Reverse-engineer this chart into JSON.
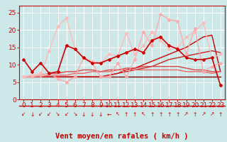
{
  "background_color": "#cce8e8",
  "grid_color": "#ffffff",
  "xlabel": "Vent moyen/en rafales ( km/h )",
  "xlabel_color": "#cc0000",
  "xlabel_fontsize": 7.5,
  "tick_color": "#cc0000",
  "tick_fontsize": 6.5,
  "ylim": [
    0,
    27
  ],
  "xlim": [
    -0.5,
    23.5
  ],
  "yticks": [
    0,
    5,
    10,
    15,
    20,
    25
  ],
  "xticks": [
    0,
    1,
    2,
    3,
    4,
    5,
    6,
    7,
    8,
    9,
    10,
    11,
    12,
    13,
    14,
    15,
    16,
    17,
    18,
    19,
    20,
    21,
    22,
    23
  ],
  "arrows": [
    "↙",
    "↓",
    "↙",
    "↙",
    "↘",
    "↙",
    "↘",
    "↓",
    "↓",
    "↓",
    "←",
    "↖",
    "↑",
    "↑",
    "↖",
    "↑",
    "↑",
    "↑",
    "↑",
    "↗",
    "↑",
    "↗",
    "↗",
    "↑"
  ],
  "series": [
    {
      "x": [
        0,
        1,
        2,
        3,
        4,
        5,
        6,
        7,
        8,
        9,
        10,
        11,
        12,
        13,
        14,
        15,
        16,
        17,
        18,
        19,
        20,
        21,
        22,
        23
      ],
      "y": [
        6.5,
        6.5,
        6.5,
        6.5,
        6.5,
        6.5,
        6.5,
        6.5,
        6.5,
        6.5,
        6.5,
        6.5,
        6.5,
        6.5,
        6.5,
        6.5,
        6.5,
        6.5,
        6.5,
        6.5,
        6.5,
        6.5,
        6.5,
        6.5
      ],
      "color": "#880000",
      "linewidth": 1.0,
      "marker": null,
      "zorder": 2
    },
    {
      "x": [
        0,
        1,
        2,
        3,
        4,
        5,
        6,
        7,
        8,
        9,
        10,
        11,
        12,
        13,
        14,
        15,
        16,
        17,
        18,
        19,
        20,
        21,
        22,
        23
      ],
      "y": [
        6.5,
        6.5,
        6.5,
        6.5,
        6.5,
        6.5,
        6.5,
        6.5,
        6.5,
        6.5,
        7.0,
        7.5,
        8.5,
        9.0,
        10.0,
        11.0,
        12.0,
        13.0,
        14.0,
        15.0,
        16.5,
        18.0,
        18.5,
        8.0
      ],
      "color": "#cc0000",
      "linewidth": 1.0,
      "marker": null,
      "zorder": 2
    },
    {
      "x": [
        0,
        1,
        2,
        3,
        4,
        5,
        6,
        7,
        8,
        9,
        10,
        11,
        12,
        13,
        14,
        15,
        16,
        17,
        18,
        19,
        20,
        21,
        22,
        23
      ],
      "y": [
        6.5,
        6.5,
        6.5,
        6.5,
        6.5,
        6.5,
        6.5,
        6.5,
        6.5,
        6.5,
        7.0,
        7.5,
        8.0,
        8.5,
        9.0,
        9.5,
        10.5,
        11.5,
        12.0,
        12.5,
        13.0,
        13.5,
        14.0,
        13.5
      ],
      "color": "#cc2222",
      "linewidth": 1.0,
      "marker": null,
      "zorder": 2
    },
    {
      "x": [
        0,
        1,
        2,
        3,
        4,
        5,
        6,
        7,
        8,
        9,
        10,
        11,
        12,
        13,
        14,
        15,
        16,
        17,
        18,
        19,
        20,
        21,
        22,
        23
      ],
      "y": [
        6.5,
        6.5,
        7.0,
        7.5,
        7.5,
        8.0,
        8.0,
        8.5,
        8.5,
        8.0,
        8.5,
        8.5,
        9.0,
        9.0,
        9.5,
        9.5,
        9.5,
        9.5,
        9.5,
        9.0,
        8.5,
        8.5,
        8.0,
        8.0
      ],
      "color": "#dd4444",
      "linewidth": 1.0,
      "marker": null,
      "zorder": 2
    },
    {
      "x": [
        0,
        1,
        2,
        3,
        4,
        5,
        6,
        7,
        8,
        9,
        10,
        11,
        12,
        13,
        14,
        15,
        16,
        17,
        18,
        19,
        20,
        21,
        22,
        23
      ],
      "y": [
        6.5,
        6.5,
        6.5,
        7.0,
        7.0,
        7.0,
        7.5,
        7.5,
        8.0,
        8.0,
        8.0,
        8.5,
        8.5,
        8.5,
        8.5,
        8.5,
        8.5,
        8.5,
        8.5,
        8.0,
        8.0,
        8.0,
        7.5,
        8.0
      ],
      "color": "#ee6666",
      "linewidth": 1.0,
      "marker": null,
      "zorder": 2
    },
    {
      "x": [
        0,
        1,
        2,
        3,
        4,
        5,
        6,
        7,
        8,
        9,
        10,
        11,
        12,
        13,
        14,
        15,
        16,
        17,
        18,
        19,
        20,
        21,
        22,
        23
      ],
      "y": [
        11.5,
        8.0,
        10.5,
        7.5,
        8.0,
        15.5,
        14.5,
        12.0,
        10.5,
        10.5,
        11.5,
        12.5,
        13.5,
        14.5,
        13.5,
        17.0,
        18.0,
        15.5,
        14.5,
        12.0,
        11.5,
        11.5,
        12.0,
        4.0
      ],
      "color": "#cc0000",
      "linewidth": 1.2,
      "marker": "D",
      "markersize": 2.0,
      "zorder": 4
    },
    {
      "x": [
        0,
        1,
        2,
        3,
        4,
        5,
        6,
        7,
        8,
        9,
        10,
        11,
        12,
        13,
        14,
        15,
        16,
        17,
        18,
        19,
        20,
        21,
        22,
        23
      ],
      "y": [
        6.5,
        6.5,
        7.0,
        7.5,
        6.0,
        5.0,
        6.5,
        12.0,
        10.5,
        6.5,
        6.5,
        10.5,
        6.5,
        11.5,
        19.5,
        15.5,
        24.5,
        23.0,
        22.5,
        13.0,
        20.5,
        8.0,
        9.5,
        10.5
      ],
      "color": "#ffaaaa",
      "linewidth": 1.0,
      "marker": "D",
      "markersize": 2.0,
      "zorder": 3
    },
    {
      "x": [
        0,
        1,
        2,
        3,
        4,
        5,
        6,
        7,
        8,
        9,
        10,
        11,
        12,
        13,
        14,
        15,
        16,
        17,
        18,
        19,
        20,
        21,
        22,
        23
      ],
      "y": [
        6.5,
        7.0,
        7.5,
        14.0,
        21.0,
        23.5,
        14.5,
        12.0,
        11.0,
        10.5,
        13.0,
        12.5,
        19.0,
        13.0,
        15.5,
        19.5,
        17.0,
        14.5,
        15.0,
        18.0,
        19.5,
        22.0,
        12.0,
        13.0
      ],
      "color": "#ffbbbb",
      "linewidth": 1.0,
      "marker": "D",
      "markersize": 2.0,
      "zorder": 3
    }
  ]
}
